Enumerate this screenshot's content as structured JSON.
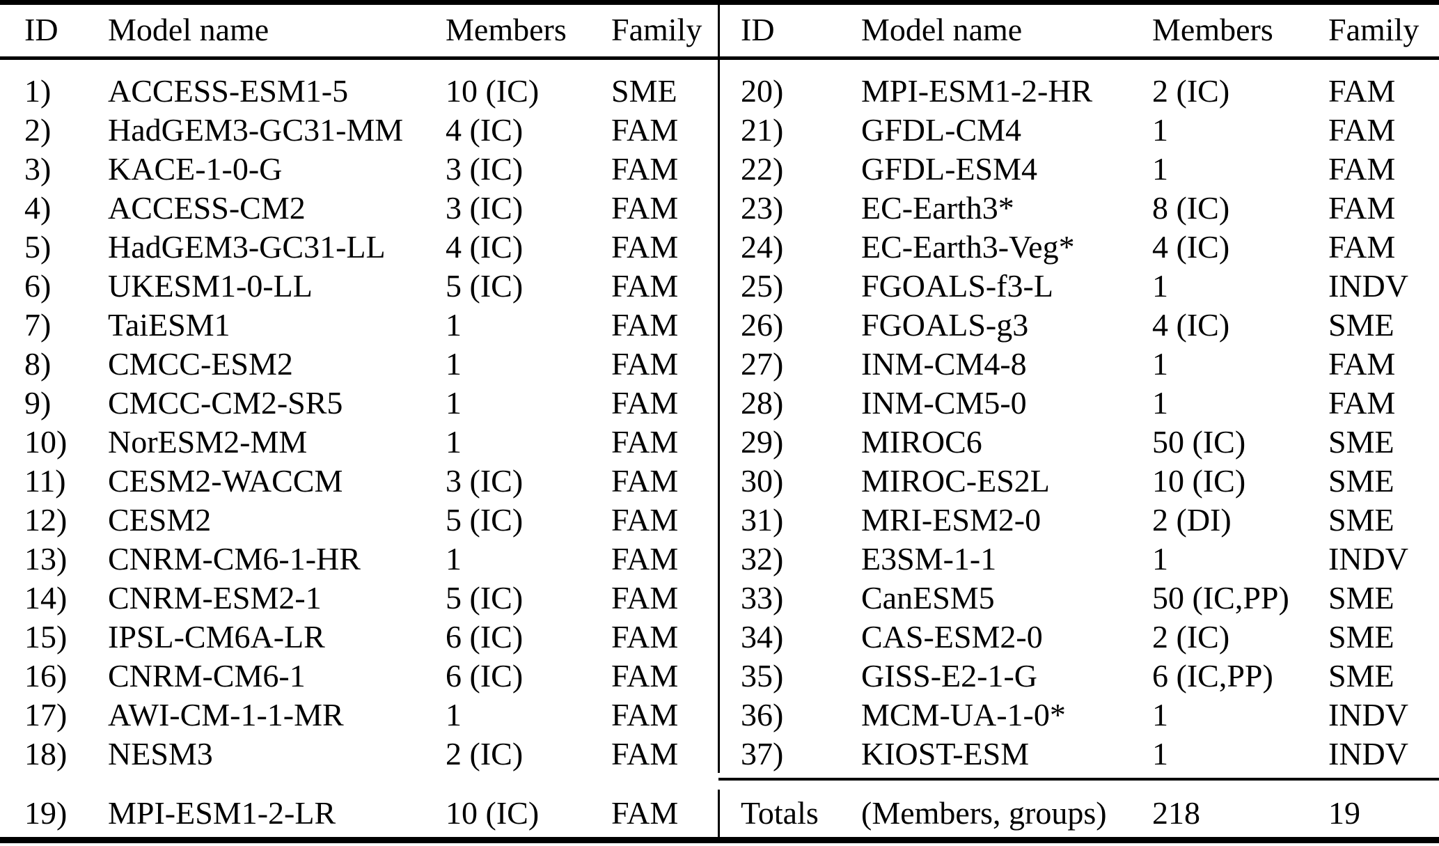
{
  "table": {
    "left": {
      "headers": {
        "id": "ID",
        "model": "Model name",
        "members": "Members",
        "family": "Family"
      },
      "rows": [
        {
          "id": "1)",
          "model": "ACCESS-ESM1-5",
          "members": "10 (IC)",
          "family": "SME"
        },
        {
          "id": "2)",
          "model": "HadGEM3-GC31-MM",
          "members": "4 (IC)",
          "family": "FAM"
        },
        {
          "id": "3)",
          "model": "KACE-1-0-G",
          "members": "3 (IC)",
          "family": "FAM"
        },
        {
          "id": "4)",
          "model": "ACCESS-CM2",
          "members": "3 (IC)",
          "family": "FAM"
        },
        {
          "id": "5)",
          "model": "HadGEM3-GC31-LL",
          "members": "4 (IC)",
          "family": "FAM"
        },
        {
          "id": "6)",
          "model": "UKESM1-0-LL",
          "members": "5 (IC)",
          "family": "FAM"
        },
        {
          "id": "7)",
          "model": "TaiESM1",
          "members": "1",
          "family": "FAM"
        },
        {
          "id": "8)",
          "model": "CMCC-ESM2",
          "members": "1",
          "family": "FAM"
        },
        {
          "id": "9)",
          "model": "CMCC-CM2-SR5",
          "members": "1",
          "family": "FAM"
        },
        {
          "id": "10)",
          "model": "NorESM2-MM",
          "members": "1",
          "family": "FAM"
        },
        {
          "id": "11)",
          "model": "CESM2-WACCM",
          "members": "3 (IC)",
          "family": "FAM"
        },
        {
          "id": "12)",
          "model": "CESM2",
          "members": "5 (IC)",
          "family": "FAM"
        },
        {
          "id": "13)",
          "model": "CNRM-CM6-1-HR",
          "members": "1",
          "family": "FAM"
        },
        {
          "id": "14)",
          "model": "CNRM-ESM2-1",
          "members": "5 (IC)",
          "family": "FAM"
        },
        {
          "id": "15)",
          "model": "IPSL-CM6A-LR",
          "members": "6 (IC)",
          "family": "FAM"
        },
        {
          "id": "16)",
          "model": "CNRM-CM6-1",
          "members": "6 (IC)",
          "family": "FAM"
        },
        {
          "id": "17)",
          "model": "AWI-CM-1-1-MR",
          "members": "1",
          "family": "FAM"
        },
        {
          "id": "18)",
          "model": "NESM3",
          "members": "2 (IC)",
          "family": "FAM"
        }
      ],
      "footer_row": {
        "id": "19)",
        "model": "MPI-ESM1-2-LR",
        "members": "10 (IC)",
        "family": "FAM"
      }
    },
    "right": {
      "headers": {
        "id": "ID",
        "model": "Model name",
        "members": "Members",
        "family": "Family"
      },
      "rows": [
        {
          "id": "20)",
          "model": "MPI-ESM1-2-HR",
          "members": "2 (IC)",
          "family": "FAM"
        },
        {
          "id": "21)",
          "model": "GFDL-CM4",
          "members": "1",
          "family": "FAM"
        },
        {
          "id": "22)",
          "model": "GFDL-ESM4",
          "members": "1",
          "family": "FAM"
        },
        {
          "id": "23)",
          "model": "EC-Earth3*",
          "members": "8 (IC)",
          "family": "FAM"
        },
        {
          "id": "24)",
          "model": "EC-Earth3-Veg*",
          "members": "4 (IC)",
          "family": "FAM"
        },
        {
          "id": "25)",
          "model": "FGOALS-f3-L",
          "members": "1",
          "family": "INDV"
        },
        {
          "id": "26)",
          "model": "FGOALS-g3",
          "members": "4 (IC)",
          "family": "SME"
        },
        {
          "id": "27)",
          "model": "INM-CM4-8",
          "members": "1",
          "family": "FAM"
        },
        {
          "id": "28)",
          "model": "INM-CM5-0",
          "members": "1",
          "family": "FAM"
        },
        {
          "id": "29)",
          "model": "MIROC6",
          "members": "50 (IC)",
          "family": "SME"
        },
        {
          "id": "30)",
          "model": "MIROC-ES2L",
          "members": "10 (IC)",
          "family": "SME"
        },
        {
          "id": "31)",
          "model": "MRI-ESM2-0",
          "members": "2 (DI)",
          "family": "SME"
        },
        {
          "id": "32)",
          "model": "E3SM-1-1",
          "members": "1",
          "family": "INDV"
        },
        {
          "id": "33)",
          "model": "CanESM5",
          "members": "50 (IC,PP)",
          "family": "SME"
        },
        {
          "id": "34)",
          "model": "CAS-ESM2-0",
          "members": "2 (IC)",
          "family": "SME"
        },
        {
          "id": "35)",
          "model": "GISS-E2-1-G",
          "members": "6 (IC,PP)",
          "family": "SME"
        },
        {
          "id": "36)",
          "model": "MCM-UA-1-0*",
          "members": "1",
          "family": "INDV"
        },
        {
          "id": "37)",
          "model": "KIOST-ESM",
          "members": "1",
          "family": "INDV"
        }
      ],
      "totals_row": {
        "id": "Totals",
        "model": "(Members, groups)",
        "members": "218",
        "family": "19"
      }
    }
  },
  "colors": {
    "background": "#ffffff",
    "text": "#000000",
    "rule": "#000000"
  }
}
